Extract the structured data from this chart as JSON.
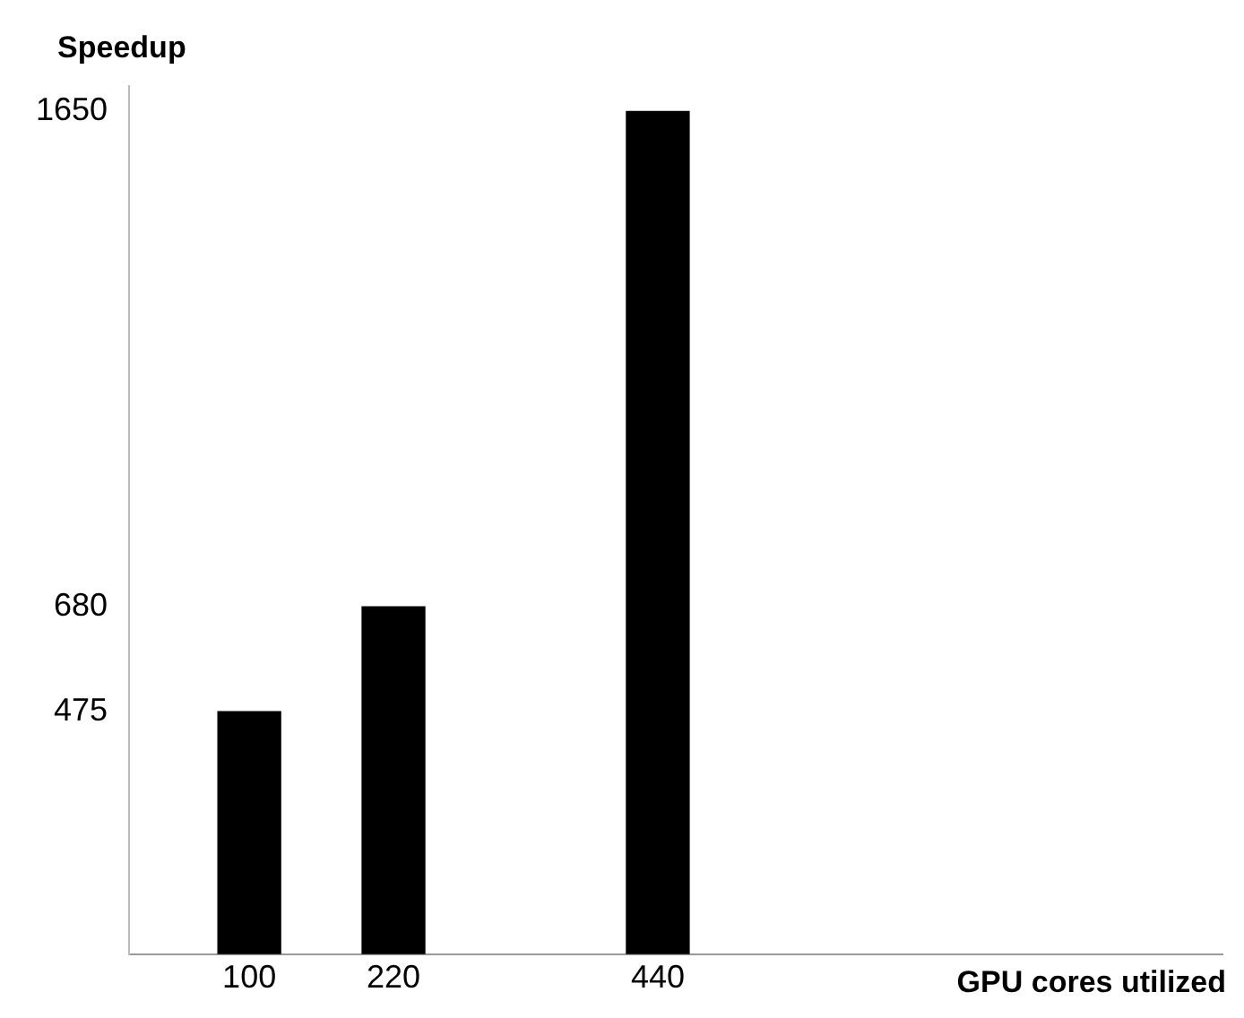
{
  "chart_data": {
    "type": "bar",
    "xlabel": "GPU cores utilized",
    "ylabel": "Speedup",
    "x": [
      100,
      220,
      440
    ],
    "values": [
      475,
      680,
      1650
    ],
    "color": "#000000",
    "xlim": [
      0,
      910
    ],
    "xticks": [
      100,
      220,
      440
    ],
    "ylim": [
      0,
      1700
    ],
    "yticks": [
      475,
      680,
      1650
    ],
    "grid": false,
    "legend": false
  }
}
